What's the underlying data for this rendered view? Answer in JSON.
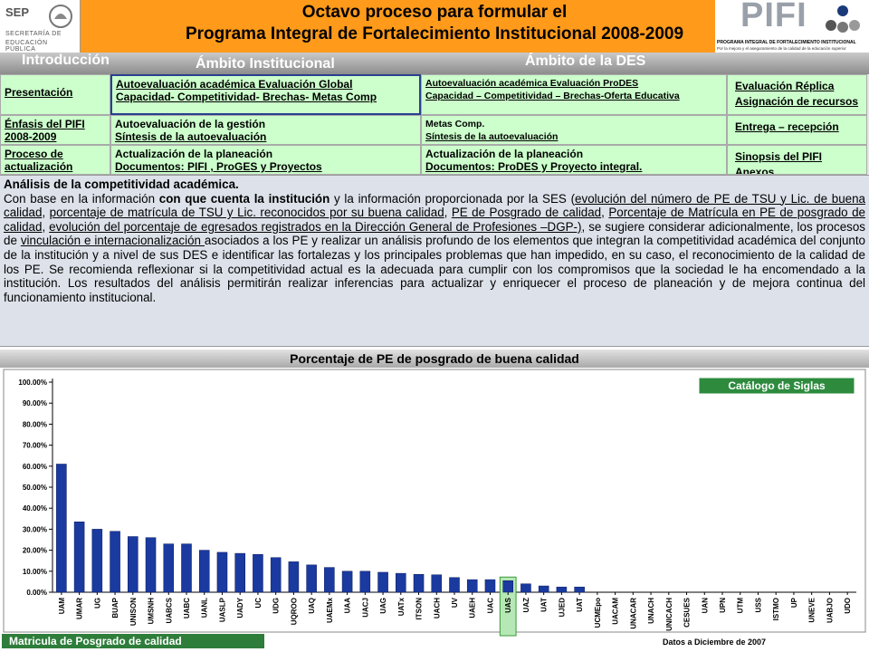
{
  "header": {
    "sep": "SEP",
    "sep_sub": [
      "SECRETARÍA DE",
      "EDUCACIÓN PÚBLICA"
    ],
    "title": [
      "Octavo proceso para formular el",
      "Programa Integral de Fortalecimiento Institucional 2008-2009"
    ],
    "pifi": "PIFI",
    "pifi_sub": "PROGRAMA INTEGRAL DE FORTALECIMIENTO INSTITUCIONAL",
    "pifi_note": "Por la mejora y el aseguramiento de la calidad de la educación superior"
  },
  "nav": [
    "Introducción",
    "Ámbito Institucional",
    "Ámbito de la DES"
  ],
  "table": {
    "rows": [
      [
        [
          "Presentación"
        ],
        [
          "Autoevaluación académica   Evaluación Global",
          "Capacidad- Competitividad- Brechas- Metas Comp"
        ],
        [
          "Autoevaluación  académica Evaluación ProDES",
          "Capacidad – Competitividad – Brechas-Oferta Educativa"
        ],
        [
          "Evaluación Réplica",
          "Asignación de recursos"
        ]
      ],
      [
        [
          "Énfasis del PIFI",
          "2008-2009"
        ],
        [
          "Autoevaluación de la gestión",
          "Síntesis de la autoevaluación"
        ],
        [
          "Metas Comp.",
          "Síntesis de la autoevaluación"
        ],
        [
          "Entrega – recepción"
        ]
      ],
      [
        [
          "Proceso de",
          "actualización"
        ],
        [
          "Actualización de la planeación",
          "Documentos: PIFI , ProGES y Proyectos"
        ],
        [
          "Actualización de la planeación",
          "Documentos: ProDES y Proyecto integral."
        ],
        [
          "Sinopsis del PIFI",
          "Anexos"
        ]
      ]
    ]
  },
  "analysis": {
    "heading": "Análisis de la competitividad académica",
    "segments": [
      {
        "text": "Con base en la información "
      },
      {
        "text": "con que cuenta la institución",
        "bold": true
      },
      {
        "text": " y la información proporcionada por la SES ("
      },
      {
        "text": "evolución del número de PE de TSU y Lic. de buena calidad",
        "underline": true
      },
      {
        "text": ", "
      },
      {
        "text": "porcentaje de matrícula de TSU y Lic. reconocidos por su buena calidad",
        "underline": true
      },
      {
        "text": ", "
      },
      {
        "text": "PE de Posgrado de calidad",
        "underline": true
      },
      {
        "text": ", "
      },
      {
        "text": "Porcentaje de Matrícula en PE de posgrado de calidad",
        "underline": true
      },
      {
        "text": ", "
      },
      {
        "text": "evolución del porcentaje de egresados registrados en la Dirección General de Profesiones –DGP-)",
        "underline": true
      },
      {
        "text": ", se sugiere considerar adicionalmente, los procesos de "
      },
      {
        "text": "vinculación e internacionalización ",
        "underline": true
      },
      {
        "text": "asociados a los PE y realizar un análisis profundo de los elementos que integran la competitividad académica del conjunto de la institución y a nivel de sus DES e identificar las fortalezas y los principales problemas que han impedido, en su caso, el reconocimiento de la calidad de los PE. Se recomienda reflexionar si la competitividad actual es la adecuada para cumplir con los compromisos que la sociedad le ha encomendado a la institución. Los resultados del análisis permitirán realizar inferencias para actualizar y enriquecer el proceso de planeación y de mejora continua del funcionamiento institucional."
      }
    ]
  },
  "chart_data": {
    "type": "bar",
    "title": "Porcentaje de PE de posgrado de buena calidad",
    "categories": [
      "UAM",
      "UMAR",
      "UG",
      "BUAP",
      "UNISON",
      "UMSNH",
      "UABCS",
      "UABC",
      "UANL",
      "UASLP",
      "UADY",
      "UC",
      "UDG",
      "UQROO",
      "UAQ",
      "UAEMx",
      "UAA",
      "UACJ",
      "UAG",
      "UATx",
      "ITSON",
      "UACH",
      "UV",
      "UAEH",
      "UAC",
      "UAS",
      "UAZ",
      "UAT",
      "UJED",
      "UAT",
      "UCMEpo",
      "UACAM",
      "UNACAR",
      "UNACH",
      "UNICACH",
      "CESUES",
      "UAN",
      "UPN",
      "UTM",
      "USS",
      "ISTMO",
      "UP",
      "UNEVE",
      "UABJO",
      "UDO"
    ],
    "values": [
      61,
      33.5,
      30,
      29,
      26.5,
      26,
      23,
      23,
      20,
      19,
      18.5,
      18,
      16.5,
      14.5,
      13,
      11.8,
      10,
      10,
      9.5,
      9,
      8.5,
      8.3,
      7,
      6,
      6,
      5.5,
      4,
      3,
      2.5,
      2.5,
      0,
      0,
      0,
      0,
      0,
      0,
      0,
      0,
      0,
      0,
      0,
      0,
      0,
      0,
      0
    ],
    "color": "#1a3aa0",
    "highlight": 25,
    "ylim": [
      0,
      100
    ],
    "yticks": [
      {
        "value": 0,
        "label": "0.00%"
      },
      {
        "value": 10,
        "label": "10.00%"
      },
      {
        "value": 20,
        "label": "20.00%"
      },
      {
        "value": 30,
        "label": "30.00%"
      },
      {
        "value": 40,
        "label": "40.00%"
      },
      {
        "value": 50,
        "label": "50.00%"
      },
      {
        "value": 60,
        "label": "60.00%"
      },
      {
        "value": 70,
        "label": "70.00%"
      },
      {
        "value": 80,
        "label": "80.00%"
      },
      {
        "value": 90,
        "label": "90.00%"
      },
      {
        "value": 100,
        "label": "100.00%"
      }
    ],
    "grid": false,
    "button": "Catálogo de Siglas",
    "footer": "Matricula de Posgrado de calidad",
    "note": "Datos a Diciembre de 2007"
  }
}
